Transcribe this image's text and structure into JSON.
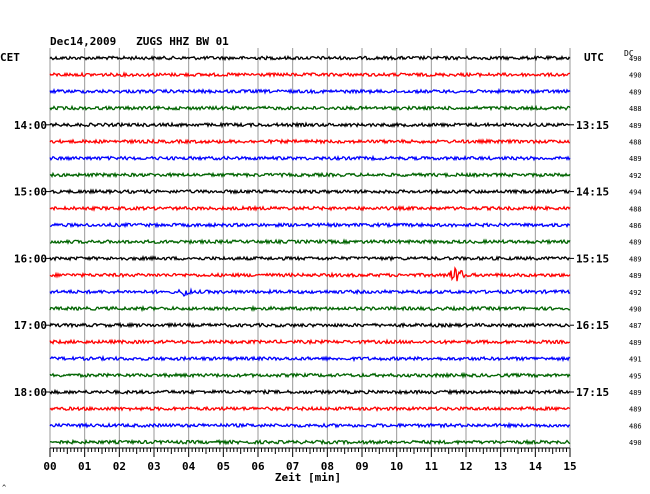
{
  "header": {
    "title": "Dec14,2009   ZUGS HHZ BW 01"
  },
  "chart_data": {
    "type": "line",
    "title": "Dec14,2009   ZUGS HHZ BW 01",
    "left_label": "CET",
    "right_label": "UTC",
    "dc_label": "DC",
    "xlabel": "Zeit [min]",
    "xlim": [
      0,
      15
    ],
    "x_ticks": [
      "00",
      "01",
      "02",
      "03",
      "04",
      "05",
      "06",
      "07",
      "08",
      "09",
      "10",
      "11",
      "12",
      "13",
      "14",
      "15"
    ],
    "left_time_ticks": [
      {
        "label": "14:00",
        "trace": 4
      },
      {
        "label": "15:00",
        "trace": 8
      },
      {
        "label": "16:00",
        "trace": 12
      },
      {
        "label": "17:00",
        "trace": 16
      },
      {
        "label": "18:00",
        "trace": 20
      }
    ],
    "right_time_ticks": [
      {
        "label": "13:15",
        "trace": 4
      },
      {
        "label": "14:15",
        "trace": 8
      },
      {
        "label": "15:15",
        "trace": 12
      },
      {
        "label": "16:15",
        "trace": 16
      },
      {
        "label": "17:15",
        "trace": 20
      }
    ],
    "trace_colors": [
      "#000000",
      "#ff0000",
      "#0000ff",
      "#006400"
    ],
    "dc_values": [
      "490",
      "490",
      "489",
      "488",
      "489",
      "488",
      "489",
      "492",
      "494",
      "488",
      "486",
      "489",
      "489",
      "489",
      "492",
      "490",
      "487",
      "489",
      "491",
      "495",
      "489",
      "489",
      "486",
      "490"
    ],
    "events": [
      {
        "trace": 13,
        "minute": 11.7,
        "amplitude": 9
      },
      {
        "trace": 14,
        "minute": 3.9,
        "amplitude": 6
      }
    ],
    "corner_mark": "^",
    "grid": true
  }
}
